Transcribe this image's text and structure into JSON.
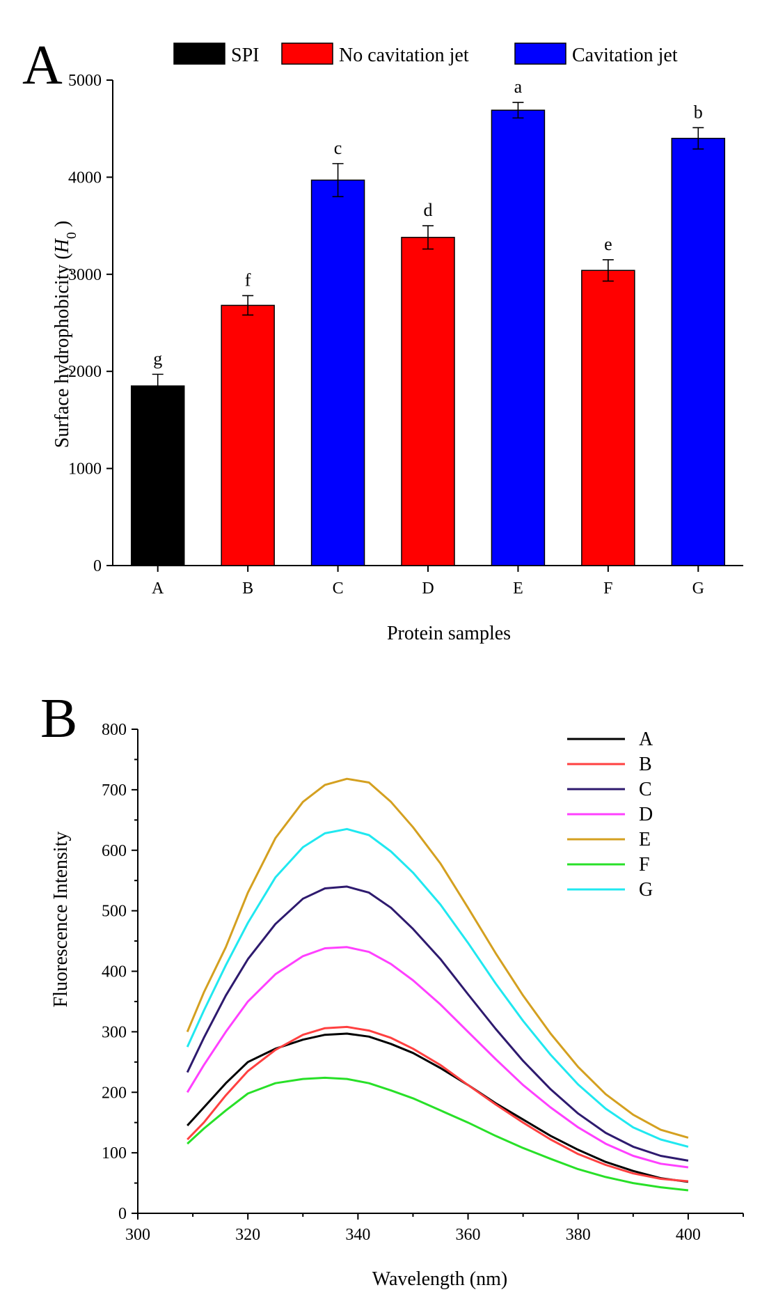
{
  "chart_data": [
    {
      "type": "bar",
      "panel_label": "A",
      "categories": [
        "A",
        "B",
        "C",
        "D",
        "E",
        "F",
        "G"
      ],
      "values": [
        1850,
        2680,
        3970,
        3380,
        4690,
        3040,
        4400
      ],
      "errors": [
        120,
        100,
        170,
        120,
        80,
        110,
        110
      ],
      "significance": [
        "g",
        "f",
        "c",
        "d",
        "a",
        "e",
        "b"
      ],
      "groups": [
        "SPI",
        "No cavitation jet",
        "Cavitation jet",
        "No cavitation jet",
        "Cavitation jet",
        "No cavitation jet",
        "Cavitation jet"
      ],
      "legend": [
        {
          "name": "SPI",
          "color": "#000000"
        },
        {
          "name": "No cavitation jet",
          "color": "#ff0000"
        },
        {
          "name": "Cavitation jet",
          "color": "#0000ff"
        }
      ],
      "xlabel": "Protein samples",
      "ylabel_prefix": "Surface hydrophobicity (",
      "ylabel_symbol": "H",
      "ylabel_sub": "0",
      "ylabel_suffix": " )",
      "ylim": [
        0,
        5000
      ],
      "yticks": [
        0,
        1000,
        2000,
        3000,
        4000,
        5000
      ],
      "legend_position": "top"
    },
    {
      "type": "line",
      "panel_label": "B",
      "xlabel": "Wavelength (nm)",
      "ylabel": "Fluorescence Intensity",
      "xlim": [
        300,
        410
      ],
      "ylim": [
        0,
        800
      ],
      "xticks": [
        300,
        320,
        340,
        360,
        380,
        400
      ],
      "yticks": [
        0,
        100,
        200,
        300,
        400,
        500,
        600,
        700,
        800
      ],
      "legend_position": "top-right",
      "series": [
        {
          "name": "A",
          "color": "#000000",
          "x": [
            309,
            312,
            316,
            320,
            325,
            330,
            334,
            338,
            342,
            346,
            350,
            355,
            360,
            365,
            370,
            375,
            380,
            385,
            390,
            395,
            400
          ],
          "y": [
            145,
            175,
            215,
            250,
            272,
            287,
            295,
            297,
            292,
            280,
            265,
            240,
            212,
            182,
            155,
            128,
            105,
            85,
            70,
            58,
            52
          ]
        },
        {
          "name": "B",
          "color": "#ff4040",
          "x": [
            309,
            312,
            316,
            320,
            325,
            330,
            334,
            338,
            342,
            346,
            350,
            355,
            360,
            365,
            370,
            375,
            380,
            385,
            390,
            395,
            400
          ],
          "y": [
            122,
            150,
            195,
            235,
            270,
            295,
            306,
            308,
            302,
            290,
            272,
            245,
            212,
            180,
            150,
            122,
            98,
            80,
            66,
            57,
            53
          ]
        },
        {
          "name": "C",
          "color": "#2e1a6e",
          "x": [
            309,
            312,
            316,
            320,
            325,
            330,
            334,
            338,
            342,
            346,
            350,
            355,
            360,
            365,
            370,
            375,
            380,
            385,
            390,
            395,
            400
          ],
          "y": [
            233,
            290,
            360,
            420,
            478,
            520,
            537,
            540,
            530,
            505,
            470,
            420,
            362,
            305,
            252,
            205,
            165,
            133,
            110,
            95,
            87
          ]
        },
        {
          "name": "D",
          "color": "#ff40ff",
          "x": [
            309,
            312,
            316,
            320,
            325,
            330,
            334,
            338,
            342,
            346,
            350,
            355,
            360,
            365,
            370,
            375,
            380,
            385,
            390,
            395,
            400
          ],
          "y": [
            200,
            245,
            300,
            350,
            395,
            425,
            438,
            440,
            432,
            412,
            385,
            345,
            300,
            255,
            212,
            175,
            142,
            115,
            95,
            82,
            76
          ]
        },
        {
          "name": "E",
          "color": "#d4a020",
          "x": [
            309,
            312,
            316,
            320,
            325,
            330,
            334,
            338,
            342,
            346,
            350,
            355,
            360,
            365,
            370,
            375,
            380,
            385,
            390,
            395,
            400
          ],
          "y": [
            300,
            365,
            440,
            530,
            620,
            680,
            708,
            718,
            712,
            680,
            638,
            578,
            505,
            430,
            360,
            297,
            242,
            197,
            163,
            138,
            125
          ]
        },
        {
          "name": "F",
          "color": "#28e028",
          "x": [
            309,
            312,
            316,
            320,
            325,
            330,
            334,
            338,
            342,
            346,
            350,
            355,
            360,
            365,
            370,
            375,
            380,
            385,
            390,
            395,
            400
          ],
          "y": [
            115,
            140,
            170,
            198,
            215,
            222,
            224,
            222,
            215,
            203,
            190,
            170,
            150,
            128,
            108,
            90,
            73,
            60,
            50,
            43,
            38
          ]
        },
        {
          "name": "G",
          "color": "#20e8f0",
          "x": [
            309,
            312,
            316,
            320,
            325,
            330,
            334,
            338,
            342,
            346,
            350,
            355,
            360,
            365,
            370,
            375,
            380,
            385,
            390,
            395,
            400
          ],
          "y": [
            275,
            335,
            410,
            480,
            555,
            605,
            628,
            635,
            625,
            598,
            563,
            510,
            447,
            380,
            318,
            262,
            213,
            173,
            142,
            122,
            110
          ]
        }
      ]
    }
  ]
}
